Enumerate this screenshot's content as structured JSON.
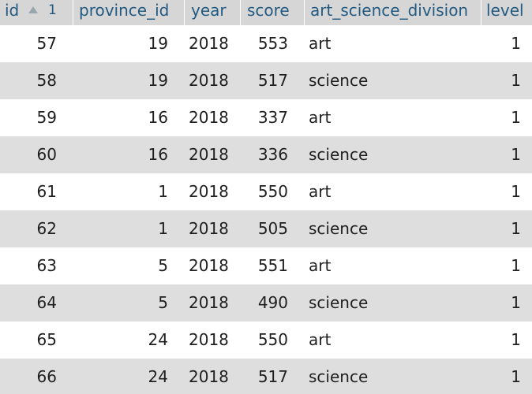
{
  "table": {
    "columns": {
      "id": "id",
      "id_sort_order": "1",
      "province_id": "province_id",
      "year": "year",
      "score": "score",
      "art_science_division": "art_science_division",
      "level": "level"
    },
    "rows": [
      {
        "id": "57",
        "province_id": "19",
        "year": "2018",
        "score": "553",
        "division": "art",
        "level": "1"
      },
      {
        "id": "58",
        "province_id": "19",
        "year": "2018",
        "score": "517",
        "division": "science",
        "level": "1"
      },
      {
        "id": "59",
        "province_id": "16",
        "year": "2018",
        "score": "337",
        "division": "art",
        "level": "1"
      },
      {
        "id": "60",
        "province_id": "16",
        "year": "2018",
        "score": "336",
        "division": "science",
        "level": "1"
      },
      {
        "id": "61",
        "province_id": "1",
        "year": "2018",
        "score": "550",
        "division": "art",
        "level": "1"
      },
      {
        "id": "62",
        "province_id": "1",
        "year": "2018",
        "score": "505",
        "division": "science",
        "level": "1"
      },
      {
        "id": "63",
        "province_id": "5",
        "year": "2018",
        "score": "551",
        "division": "art",
        "level": "1"
      },
      {
        "id": "64",
        "province_id": "5",
        "year": "2018",
        "score": "490",
        "division": "science",
        "level": "1"
      },
      {
        "id": "65",
        "province_id": "24",
        "year": "2018",
        "score": "550",
        "division": "art",
        "level": "1"
      },
      {
        "id": "66",
        "province_id": "24",
        "year": "2018",
        "score": "517",
        "division": "science",
        "level": "1"
      }
    ]
  },
  "colors": {
    "header_bg": "#d6d6d6",
    "header_text": "#235a81",
    "row_alt_bg": "#dedede",
    "row_bg": "#ffffff"
  }
}
